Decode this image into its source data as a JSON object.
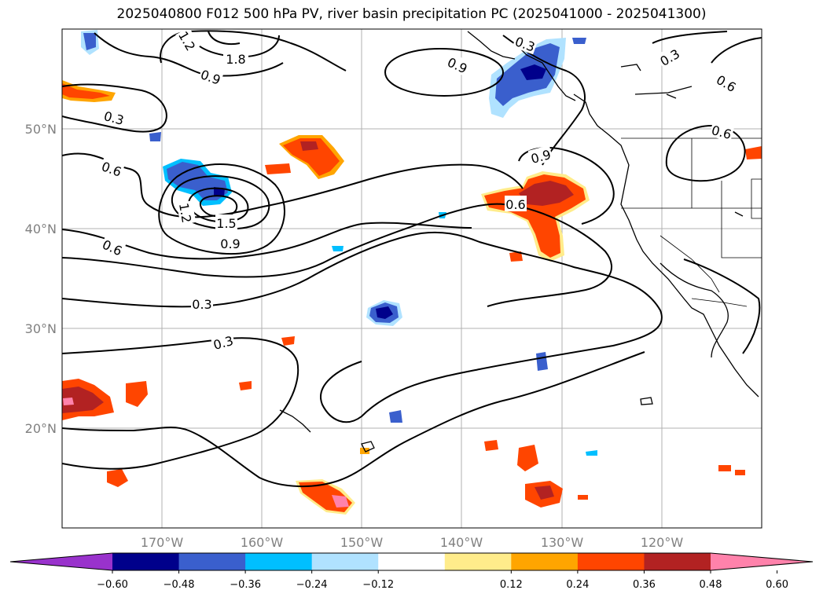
{
  "title": "2025040800 F012 500 hPa PV, river basin precipitation PC (2025041000 - 2025041300)",
  "map": {
    "lon_range": [
      -180,
      -110
    ],
    "lat_range": [
      10,
      60
    ],
    "lon_ticks": [
      "170°W",
      "160°W",
      "150°W",
      "140°W",
      "130°W",
      "120°W"
    ],
    "lat_ticks": [
      "50°N",
      "40°N",
      "30°N",
      "20°N"
    ],
    "gridlines": true,
    "projection": "PlateCarree"
  },
  "contours": {
    "field": "500 hPa PV",
    "labels": [
      "1.2",
      "1.8",
      "0.3",
      "0.9",
      "0.9",
      "0.3",
      "0.6",
      "0.3",
      "0.6",
      "0.6",
      "0.9",
      "0.6",
      "1.2",
      "1.5",
      "0.9",
      "0.6",
      "0.3",
      "0.3"
    ]
  },
  "colorbar": {
    "ticks": [
      "−0.60",
      "−0.48",
      "−0.36",
      "−0.24",
      "−0.12",
      "0.12",
      "0.24",
      "0.36",
      "0.48",
      "0.60"
    ],
    "colors": [
      "#9932cc",
      "#00008b",
      "#3a5fcd",
      "#00bfff",
      "#b0e2ff",
      "#ffffff",
      "#ffec8b",
      "#ffa500",
      "#ff4500",
      "#b22222",
      "#ff82ab"
    ],
    "extend": "both"
  }
}
